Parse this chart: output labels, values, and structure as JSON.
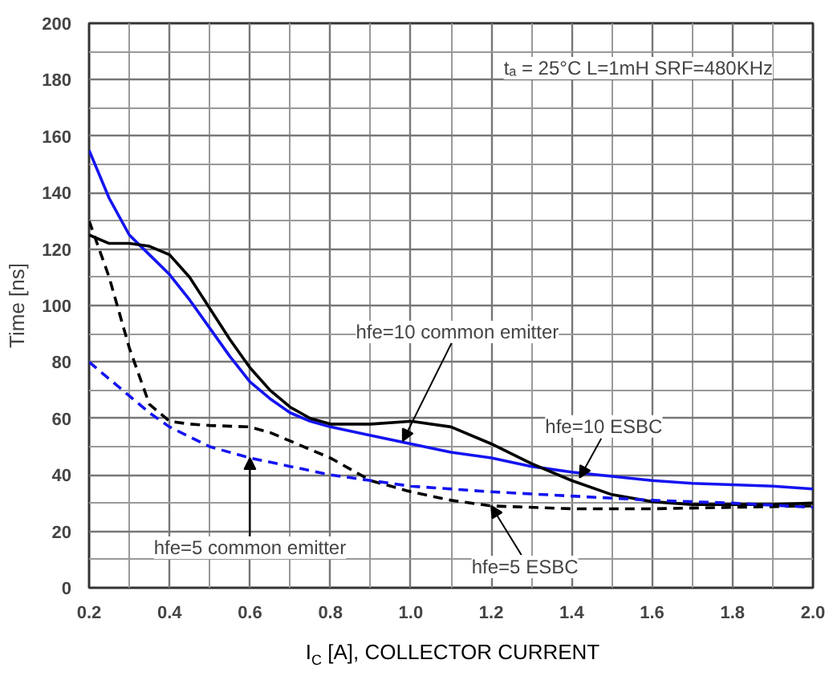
{
  "chart_data": {
    "type": "line",
    "xlabel": "I$_{C}$ [A], COLLECTOR CURRENT",
    "ylabel": "Time [ns]",
    "xlim": [
      0.2,
      2.0
    ],
    "ylim": [
      0,
      200
    ],
    "xticks": [
      0.2,
      0.4,
      0.6,
      0.8,
      {
        "value": 1.0,
        "label": "1.0"
      },
      1.2,
      1.4,
      1.6,
      1.8,
      {
        "value": 2.0,
        "label": "2.0"
      }
    ],
    "yticks": [
      0,
      20,
      40,
      60,
      80,
      100,
      120,
      140,
      160,
      180,
      200
    ],
    "grid": true,
    "marker": "none",
    "series": [
      {
        "color": "#1414f0",
        "line_style": "solid",
        "x": [
          0.2,
          0.25,
          0.3,
          0.35,
          0.4,
          0.45,
          0.5,
          0.55,
          0.6,
          0.65,
          0.7,
          0.75,
          0.8,
          0.9,
          1.0,
          1.1,
          1.2,
          1.3,
          1.4,
          1.5,
          1.6,
          1.7,
          1.8,
          1.9,
          2.0
        ],
        "values": [
          155,
          138,
          125,
          118,
          111,
          102,
          92,
          82,
          73,
          67,
          62,
          59,
          57,
          54,
          51,
          48,
          46,
          43,
          41,
          39.5,
          38,
          37,
          36.5,
          36,
          35
        ]
      },
      {
        "color": "#000000",
        "line_style": "solid",
        "x": [
          0.2,
          0.25,
          0.3,
          0.35,
          0.4,
          0.45,
          0.5,
          0.55,
          0.6,
          0.65,
          0.7,
          0.75,
          0.8,
          0.9,
          1.0,
          1.1,
          1.2,
          1.3,
          1.4,
          1.5,
          1.6,
          1.7,
          1.8,
          1.9,
          2.0
        ],
        "values": [
          125,
          122,
          122,
          121,
          118,
          110,
          99,
          88,
          78,
          70,
          64,
          60,
          58,
          58,
          59,
          57,
          51,
          44,
          38,
          33,
          30.5,
          29.5,
          29.5,
          29.5,
          30
        ]
      },
      {
        "color": "#000000",
        "line_style": "dashed",
        "x": [
          0.2,
          0.25,
          0.3,
          0.35,
          0.4,
          0.45,
          0.5,
          0.6,
          0.65,
          0.7,
          0.8,
          0.9,
          1.0,
          1.1,
          1.2,
          1.4,
          1.6,
          1.8,
          2.0
        ],
        "values": [
          130,
          110,
          85,
          65,
          59,
          58,
          57.5,
          57,
          55,
          52,
          46,
          38,
          34,
          31,
          29,
          28,
          28,
          28.5,
          29
        ]
      },
      {
        "color": "#1414f0",
        "line_style": "dashed",
        "x": [
          0.2,
          0.3,
          0.35,
          0.4,
          0.5,
          0.6,
          0.7,
          0.8,
          0.9,
          1.0,
          1.2,
          1.4,
          1.6,
          1.8,
          2.0
        ],
        "values": [
          80,
          68,
          62,
          57,
          50,
          46,
          43,
          40,
          38,
          36,
          34,
          32.5,
          31,
          30,
          28.5
        ]
      }
    ],
    "annotations": [
      "tₐ = 25°C L=1mH SRF=480KHz",
      {
        "text": "hfe=10 common emitter",
        "x": 0.98,
        "y": 52
      },
      {
        "text": "hfe=10 ESBC",
        "x": 1.42,
        "y": 39
      },
      {
        "text": "hfe=5 common emitter",
        "x": 0.6,
        "y": 46
      },
      {
        "text": "hfe=5 ESBC",
        "x": 1.2,
        "y": 29
      }
    ]
  }
}
